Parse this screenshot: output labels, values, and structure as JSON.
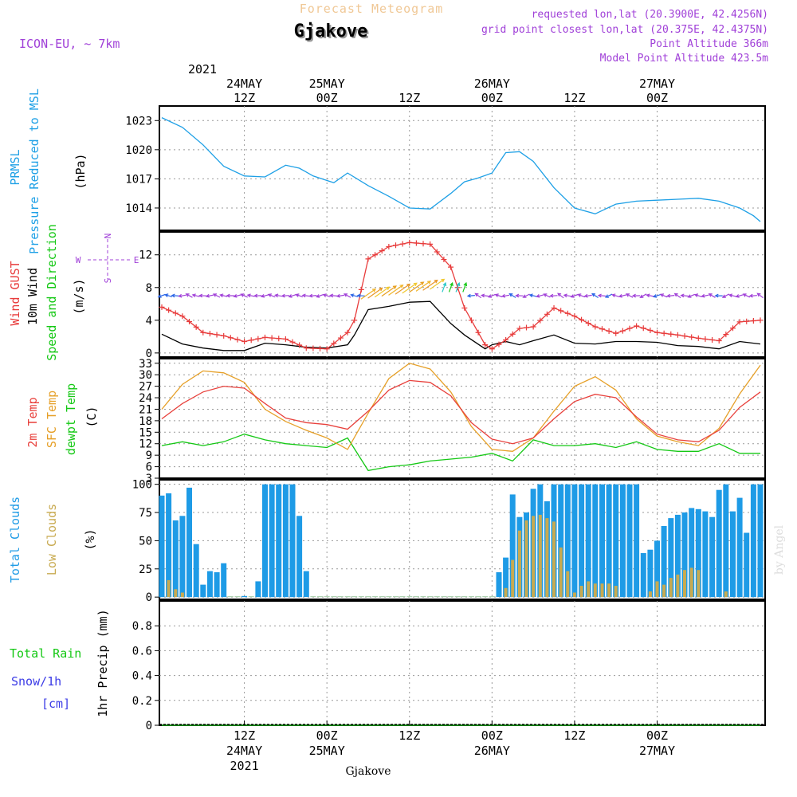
{
  "header": {
    "subtitle": "Forecast Meteogram",
    "location": "Gjakove",
    "model": "ICON-EU, ~ 7km",
    "requested": "requested lon,lat (20.3900E, 42.4256N)",
    "grid": "grid point closest lon,lat (20.375E, 42.4375N)",
    "point_alt": "Point Altitude 366m",
    "model_alt": "Model Point Altitude 423.5m",
    "footer": "Gjakove",
    "credit": "by Angel"
  },
  "time_axis": {
    "top_year": "2021",
    "top_labels": [
      {
        "date": "24MAY",
        "hour": "12Z",
        "t": 12
      },
      {
        "date": "25MAY",
        "hour": "00Z",
        "t": 24
      },
      {
        "date": "",
        "hour": "12Z",
        "t": 36
      },
      {
        "date": "26MAY",
        "hour": "00Z",
        "t": 48
      },
      {
        "date": "",
        "hour": "12Z",
        "t": 60
      },
      {
        "date": "27MAY",
        "hour": "00Z",
        "t": 72
      }
    ],
    "bottom_labels": [
      {
        "hour": "12Z",
        "date": "24MAY",
        "year": "2021",
        "t": 12
      },
      {
        "hour": "00Z",
        "date": "25MAY",
        "year": "",
        "t": 24
      },
      {
        "hour": "12Z",
        "date": "",
        "year": "",
        "t": 36
      },
      {
        "hour": "00Z",
        "date": "26MAY",
        "year": "",
        "t": 48
      },
      {
        "hour": "12Z",
        "date": "",
        "year": "",
        "t": 60
      },
      {
        "hour": "00Z",
        "date": "27MAY",
        "year": "",
        "t": 72
      }
    ]
  },
  "panels": {
    "pressure": {
      "label1": "PRMSL",
      "label2": "Pressure Reduced to MSL",
      "unit": "(hPa)",
      "ticks": [
        "1014",
        "1017",
        "1020",
        "1023"
      ]
    },
    "wind": {
      "label_gust": "Wind GUST",
      "label_wind": "10m Wind",
      "label_dir": "Speed and Direction",
      "unit": "(m/s)",
      "compass_n": "N",
      "compass_s": "S",
      "compass_w": "W",
      "compass_e": "E",
      "ticks": [
        "0",
        "4",
        "8",
        "12"
      ]
    },
    "temp": {
      "label_t2m": "2m Temp",
      "label_sfc": "SFC Temp",
      "label_dew": "dewpt Temp",
      "unit": "(C)",
      "ticks": [
        "3",
        "6",
        "9",
        "12",
        "15",
        "18",
        "21",
        "24",
        "27",
        "30",
        "33"
      ]
    },
    "clouds": {
      "label_total": "Total Clouds",
      "label_low": "Low Clouds",
      "unit": "(%)",
      "ticks": [
        "0",
        "25",
        "50",
        "75",
        "100"
      ]
    },
    "precip": {
      "label_rain": "Total Rain",
      "label_snow": "Snow/1h",
      "label_cm": "[cm]",
      "axis_label": "1hr Precip (mm)",
      "ticks": [
        "0",
        "0.2",
        "0.4",
        "0.6",
        "0.8"
      ]
    }
  },
  "colors": {
    "pressure": "#1ea0e6",
    "gust": "#e83c3c",
    "wind": "#000000",
    "t2m": "#e8413c",
    "sfc": "#e6a028",
    "dew": "#14c814",
    "total_clouds": "#1e9be6",
    "low_clouds": "#c8aa50",
    "purple": "#a040d8",
    "rain": "#14c814",
    "snow": "#3c3ce6",
    "title_orange": "#f0c896"
  },
  "chart_data": [
    {
      "type": "line",
      "title": "PRMSL Pressure Reduced to MSL",
      "ylabel": "(hPa)",
      "ylim": [
        1011.7,
        1024.5
      ],
      "x": [
        0,
        3,
        6,
        9,
        12,
        15,
        18,
        20,
        22,
        25,
        27,
        30,
        33,
        36,
        39,
        42,
        44,
        46,
        48,
        50,
        52,
        54,
        57,
        60,
        63,
        66,
        69,
        72,
        75,
        78,
        81,
        84,
        86,
        87
      ],
      "series": [
        {
          "name": "PRMSL",
          "values": [
            1023.3,
            1022.3,
            1020.5,
            1018.3,
            1017.3,
            1017.2,
            1018.4,
            1018.1,
            1017.3,
            1016.6,
            1017.6,
            1016.3,
            1015.2,
            1014.0,
            1013.9,
            1015.5,
            1016.7,
            1017.1,
            1017.6,
            1019.7,
            1019.8,
            1018.8,
            1016.1,
            1014.0,
            1013.4,
            1014.4,
            1014.7,
            1014.8,
            1014.9,
            1015.0,
            1014.7,
            1014.0,
            1013.2,
            1012.6
          ]
        }
      ]
    },
    {
      "type": "line",
      "title": "Wind GUST / 10m Wind",
      "ylabel": "(m/s)",
      "ylim": [
        -0.5,
        14.8
      ],
      "x": [
        0,
        3,
        6,
        9,
        12,
        15,
        18,
        21,
        24,
        27,
        28,
        30,
        33,
        36,
        39,
        42,
        44,
        47,
        48,
        50,
        52,
        54,
        57,
        60,
        63,
        66,
        69,
        72,
        75,
        78,
        81,
        84,
        87
      ],
      "series": [
        {
          "name": "Wind GUST",
          "values": [
            5.6,
            4.5,
            2.5,
            2.1,
            1.4,
            1.9,
            1.7,
            0.6,
            0.5,
            2.5,
            4,
            11.5,
            13,
            13.5,
            13.3,
            10.5,
            5.5,
            1,
            0.5,
            1.6,
            3,
            3.2,
            5.5,
            4.5,
            3.2,
            2.4,
            3.3,
            2.5,
            2.2,
            1.8,
            1.5,
            3.8,
            4
          ]
        },
        {
          "name": "10m Wind",
          "values": [
            2.3,
            1.1,
            0.6,
            0.3,
            0.3,
            1.2,
            1,
            0.7,
            0.6,
            1,
            2.2,
            5.3,
            5.7,
            6.2,
            6.3,
            3.6,
            2.2,
            0.5,
            1,
            1.4,
            1,
            1.5,
            2.2,
            1.2,
            1.1,
            1.4,
            1.4,
            1.3,
            0.9,
            0.8,
            0.5,
            1.4,
            1.1
          ]
        }
      ]
    },
    {
      "type": "line",
      "title": "Temperature",
      "ylabel": "(C)",
      "ylim": [
        3,
        34.2
      ],
      "x": [
        0,
        3,
        6,
        9,
        12,
        15,
        18,
        21,
        24,
        27,
        30,
        33,
        36,
        39,
        42,
        45,
        48,
        51,
        54,
        57,
        60,
        63,
        66,
        69,
        72,
        75,
        78,
        81,
        84,
        87
      ],
      "series": [
        {
          "name": "2m Temp",
          "values": [
            18.5,
            22.5,
            25.5,
            27,
            26.5,
            22.5,
            18.7,
            17.5,
            17,
            15.8,
            20.5,
            26,
            28.5,
            28,
            24.5,
            17.5,
            13.2,
            12,
            13.5,
            18.5,
            23,
            24.9,
            24,
            19,
            14.5,
            13,
            12.5,
            15.5,
            21.5,
            25.5
          ]
        },
        {
          "name": "SFC Temp",
          "values": [
            21,
            27.5,
            31,
            30.5,
            28,
            21,
            17.8,
            15.5,
            13.5,
            10.5,
            20,
            29,
            33,
            31.5,
            25.5,
            16.5,
            10.5,
            10,
            13.5,
            20.5,
            27,
            29.5,
            26,
            18.5,
            14,
            12.5,
            11.5,
            16,
            25,
            32.5
          ]
        },
        {
          "name": "dewpt Temp",
          "values": [
            11.5,
            12.5,
            11.5,
            12.5,
            14.5,
            13,
            12,
            11.5,
            11,
            13.5,
            5,
            6,
            6.5,
            7.5,
            8,
            8.5,
            9.5,
            7.5,
            13,
            11.5,
            11.5,
            12,
            11,
            12.5,
            10.5,
            10,
            10,
            12,
            9.5,
            9.5
          ]
        }
      ]
    },
    {
      "type": "bar",
      "title": "Clouds",
      "ylabel": "(%)",
      "ylim": [
        -2,
        104
      ],
      "x": [
        0,
        1,
        2,
        3,
        4,
        5,
        6,
        7,
        8,
        9,
        10,
        11,
        12,
        13,
        14,
        15,
        16,
        17,
        18,
        19,
        20,
        21,
        22,
        23,
        24,
        25,
        26,
        27,
        28,
        29,
        30,
        31,
        32,
        33,
        34,
        35,
        36,
        37,
        38,
        39,
        40,
        41,
        42,
        43,
        44,
        45,
        46,
        47,
        48,
        49,
        50,
        51,
        52,
        53,
        54,
        55,
        56,
        57,
        58,
        59,
        60,
        61,
        62,
        63,
        64,
        65,
        66,
        67,
        68,
        69,
        70,
        71,
        72,
        73,
        74,
        75,
        76,
        77,
        78,
        79,
        80,
        81,
        82,
        83,
        84,
        85,
        86,
        87
      ],
      "series": [
        {
          "name": "Total Clouds",
          "values": [
            90,
            92,
            68,
            72,
            97,
            47,
            11,
            23,
            22,
            30,
            0,
            0,
            1,
            0,
            14,
            100,
            100,
            100,
            100,
            100,
            72,
            23,
            0,
            0,
            0,
            0,
            0,
            0,
            0,
            0,
            0,
            0,
            0,
            0,
            0,
            0,
            0,
            0,
            0,
            0,
            0,
            0,
            0,
            0,
            0,
            0,
            0,
            0,
            0,
            22,
            35,
            91,
            71,
            75,
            96,
            100,
            85,
            100,
            100,
            100,
            100,
            100,
            100,
            100,
            100,
            100,
            100,
            100,
            100,
            100,
            39,
            42,
            50,
            63,
            70,
            73,
            75,
            79,
            78,
            76,
            71,
            95,
            100,
            76,
            88,
            57,
            100,
            100
          ]
        },
        {
          "name": "Low Clouds",
          "values": [
            0,
            15,
            7,
            4,
            0,
            0,
            0,
            0,
            0,
            0,
            0,
            0,
            0,
            0,
            0,
            0,
            0,
            0,
            0,
            0,
            0,
            0,
            0,
            0,
            0,
            0,
            0,
            0,
            0,
            0,
            0,
            0,
            0,
            0,
            0,
            0,
            0,
            0,
            0,
            0,
            0,
            0,
            0,
            0,
            0,
            0,
            0,
            0,
            0,
            0,
            8,
            33,
            59,
            68,
            72,
            73,
            70,
            67,
            44,
            23,
            4,
            10,
            14,
            12,
            12,
            12,
            10,
            0,
            0,
            0,
            0,
            5,
            14,
            11,
            17,
            20,
            24,
            26,
            24,
            0,
            0,
            0,
            5,
            0,
            0,
            0,
            0,
            0
          ]
        }
      ]
    },
    {
      "type": "line",
      "title": "1hr Precip",
      "ylabel": "1hr Precip (mm)",
      "ylim": [
        0,
        1
      ],
      "x": [
        0,
        87
      ],
      "series": [
        {
          "name": "Total Rain",
          "values": [
            0,
            0
          ]
        }
      ]
    }
  ]
}
